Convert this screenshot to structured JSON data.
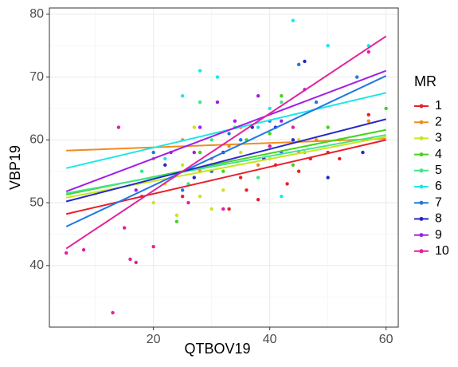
{
  "chart_data": {
    "type": "scatter",
    "x_label": "QTBOV19",
    "y_label": "VBP19",
    "legend_title": "MR",
    "legend_position": "right",
    "xlim": [
      2.1,
      62.1
    ],
    "ylim": [
      30.2,
      81.0
    ],
    "xticks": [
      20,
      40,
      60
    ],
    "yticks": [
      40,
      50,
      60,
      70,
      80
    ],
    "x_minor_grid": [
      10,
      30,
      50
    ],
    "y_minor_grid": [
      35,
      45,
      55,
      65,
      75
    ],
    "grid": true,
    "series": [
      {
        "name": "1",
        "color": "#e8202a",
        "x": [
          33,
          36,
          38,
          41,
          45,
          47,
          50,
          52,
          57,
          30,
          35,
          43,
          25,
          39
        ],
        "y": [
          49,
          52,
          50.5,
          56,
          55,
          57,
          58,
          57,
          64,
          55,
          54,
          53,
          51,
          57
        ],
        "fit": {
          "x": [
            5,
            60
          ],
          "y": [
            48.2,
            60.0
          ]
        }
      },
      {
        "name": "2",
        "color": "#f08c1e",
        "x": [
          25,
          30,
          35,
          40,
          45,
          48,
          28,
          33,
          57,
          38
        ],
        "y": [
          60,
          57,
          62,
          59,
          58,
          60,
          55,
          59,
          63,
          56
        ],
        "fit": {
          "x": [
            5,
            60
          ],
          "y": [
            58.3,
            60.2
          ]
        }
      },
      {
        "name": "3",
        "color": "#c8e61e",
        "x": [
          20,
          22,
          25,
          28,
          30,
          32,
          35,
          40,
          45,
          24,
          27
        ],
        "y": [
          50,
          53,
          56,
          51,
          49,
          52,
          58,
          57,
          60,
          48,
          62
        ],
        "fit": {
          "x": [
            5,
            60
          ],
          "y": [
            50.8,
            60.5
          ]
        }
      },
      {
        "name": "4",
        "color": "#46d21e",
        "x": [
          24,
          28,
          32,
          36,
          40,
          44,
          50,
          60,
          20,
          42
        ],
        "y": [
          47,
          58,
          55,
          60,
          61,
          56,
          62,
          65,
          57,
          67
        ],
        "fit": {
          "x": [
            5,
            60
          ],
          "y": [
            51.3,
            61.6
          ]
        }
      },
      {
        "name": "5",
        "color": "#3ce68c",
        "x": [
          26,
          30,
          34,
          38,
          42,
          46,
          18,
          52,
          28
        ],
        "y": [
          53,
          60,
          62,
          54,
          66,
          58,
          55,
          60,
          66
        ],
        "fit": {
          "x": [
            5,
            60
          ],
          "y": [
            51.5,
            60.8
          ]
        }
      },
      {
        "name": "6",
        "color": "#1ee6e6",
        "x": [
          28,
          31,
          35,
          40,
          44,
          50,
          22,
          38,
          57,
          42,
          25
        ],
        "y": [
          71,
          70,
          60,
          65,
          79,
          75,
          57,
          62,
          75,
          51,
          67
        ],
        "fit": {
          "x": [
            5,
            60
          ],
          "y": [
            55.5,
            67.5
          ]
        }
      },
      {
        "name": "7",
        "color": "#1e78e6",
        "x": [
          20,
          25,
          30,
          35,
          40,
          45,
          48,
          55,
          33,
          42
        ],
        "y": [
          58,
          52,
          55,
          60,
          63,
          72,
          66,
          70,
          61,
          58
        ],
        "fit": {
          "x": [
            5,
            60
          ],
          "y": [
            46.2,
            70.2
          ]
        }
      },
      {
        "name": "8",
        "color": "#2828c8",
        "x": [
          22,
          27,
          32,
          37,
          41,
          44,
          46,
          50,
          56,
          39
        ],
        "y": [
          56,
          54,
          58,
          62,
          62,
          60,
          72.5,
          54,
          58,
          57
        ],
        "fit": {
          "x": [
            5,
            60
          ],
          "y": [
            50.2,
            63.3
          ]
        }
      },
      {
        "name": "9",
        "color": "#a01ee6",
        "x": [
          17,
          23,
          28,
          31,
          34,
          38,
          42,
          27,
          46,
          30
        ],
        "y": [
          52,
          58,
          62,
          66,
          63,
          67,
          63,
          58,
          68,
          56
        ],
        "fit": {
          "x": [
            5,
            60
          ],
          "y": [
            51.8,
            71.0
          ]
        }
      },
      {
        "name": "10",
        "color": "#e61ea0",
        "x": [
          5,
          8,
          13,
          14,
          15,
          16,
          17,
          18,
          20,
          26,
          32,
          40,
          44,
          57
        ],
        "y": [
          42,
          42.5,
          32.5,
          62,
          46,
          41,
          40.5,
          51,
          43,
          50,
          49,
          59,
          62,
          74
        ],
        "fit": {
          "x": [
            5,
            60
          ],
          "y": [
            42.7,
            76.5
          ]
        }
      }
    ]
  }
}
